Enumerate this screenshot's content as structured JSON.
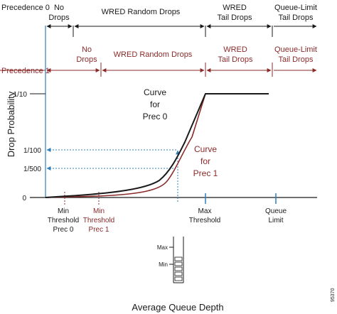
{
  "top_band": {
    "label": "Precedence 0",
    "segments": [
      "No",
      "Drops",
      "WRED Random Drops",
      "WRED",
      "Tail Drops",
      "Queue-Limit",
      "Tail Drops"
    ]
  },
  "red_band": {
    "label": "Precedence 1",
    "segments": [
      "No",
      "Drops",
      "WRED Random Drops",
      "WRED",
      "Tail Drops",
      "Queue-Limit",
      "Tail Drops"
    ]
  },
  "axes": {
    "ylabel": "Drop Probability",
    "xlabel": "Average Queue Depth",
    "y_ticks": [
      "1/10",
      "1/100",
      "1/500",
      "0"
    ]
  },
  "curves": {
    "prec0": [
      "Curve",
      "for",
      "Prec 0"
    ],
    "prec1": [
      "Curve",
      "for",
      "Prec 1"
    ]
  },
  "x_labels": {
    "min_prec0": [
      "Min",
      "Threshold",
      "Prec 0"
    ],
    "min_prec1": [
      "Min",
      "Threshold",
      "Prec 1"
    ],
    "max": [
      "Max",
      "Threshold"
    ],
    "queue": [
      "Queue",
      "Limit"
    ]
  },
  "queue_icon": {
    "max": "Max",
    "min": "Min"
  },
  "figure_id": "95370",
  "colors": {
    "black": "#1a1a1a",
    "red": "#8b2a2a",
    "blue": "#2f7fb8"
  }
}
